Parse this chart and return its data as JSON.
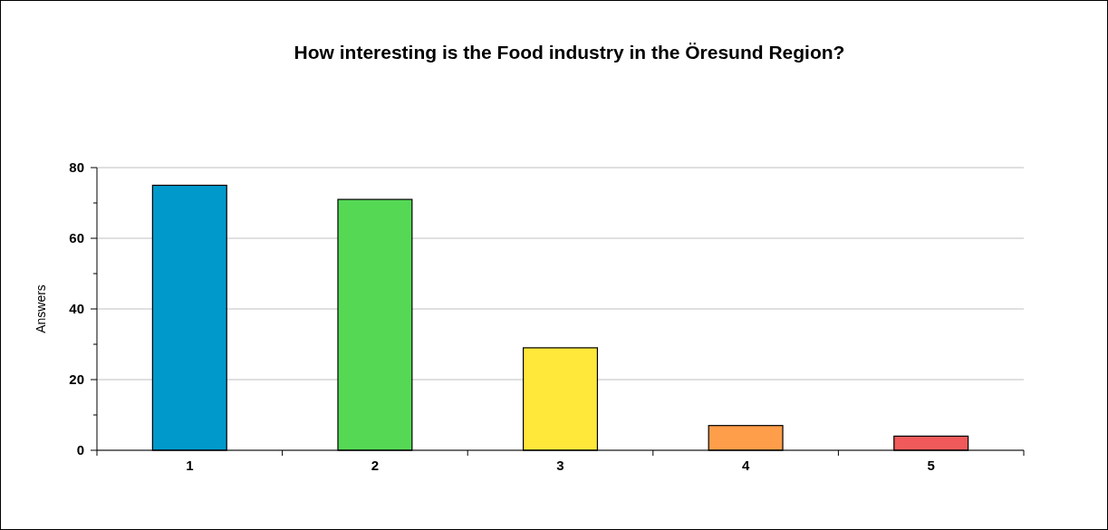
{
  "chart_data": {
    "type": "bar",
    "title": "How interesting is the Food industry in the Öresund Region?",
    "ylabel": "Answers",
    "categories": [
      "1",
      "2",
      "3",
      "4",
      "5"
    ],
    "values": [
      75,
      71,
      29,
      7,
      4
    ],
    "colors": [
      "#0099cc",
      "#55d955",
      "#ffe83a",
      "#ff9e4a",
      "#f05a5a"
    ],
    "ylim": [
      0,
      80
    ],
    "yticks": [
      0,
      20,
      40,
      60,
      80
    ],
    "grid": "y"
  }
}
